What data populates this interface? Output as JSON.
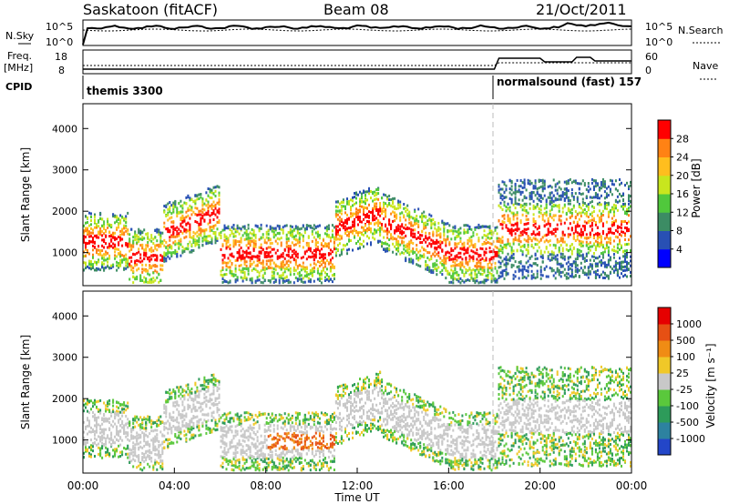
{
  "header": {
    "station": "Saskatoon (fitACF)",
    "beam": "Beam 08",
    "date": "21/Oct/2011"
  },
  "noise_panel": {
    "left_label": "N.Sky",
    "right_label": "N.Search",
    "left_ticks": [
      "10^5",
      "10^0"
    ],
    "right_ticks": [
      "10^5",
      "10^0"
    ]
  },
  "freq_panel": {
    "left_label_line1": "Freq.",
    "left_label_line2": "[MHz]",
    "right_label": "Nave",
    "left_ticks": [
      "18",
      "8"
    ],
    "right_ticks": [
      "60",
      "0"
    ]
  },
  "cpid": {
    "label": "CPID",
    "segments": [
      {
        "name": "themis 3300",
        "start": 0
      },
      {
        "name": "normalsound (fast) 157",
        "start": 18.1
      }
    ]
  },
  "chart_data": [
    {
      "type": "heatmap",
      "quantity": "power",
      "ylabel": "Slant Range [km]",
      "ylim": [
        200,
        4600
      ],
      "yticks": [
        "1000",
        "2000",
        "3000",
        "4000"
      ],
      "colorbar_label": "Power [dB]",
      "colorbar_ticks": [
        "28",
        "24",
        "20",
        "16",
        "12",
        "8",
        "4"
      ],
      "colorbar_colors": [
        "#0000ff",
        "#2850b4",
        "#3c8c64",
        "#50c83c",
        "#c8e61e",
        "#ffbe1e",
        "#ff8214",
        "#ff0000"
      ]
    },
    {
      "type": "heatmap",
      "quantity": "velocity",
      "ylabel": "Slant Range [km]",
      "ylim": [
        200,
        4600
      ],
      "yticks": [
        "1000",
        "2000",
        "3000",
        "4000"
      ],
      "colorbar_label": "Velocity [m s⁻¹]",
      "colorbar_ticks": [
        "1000",
        "500",
        "100",
        "25",
        "-25",
        "-100",
        "-500",
        "-1000"
      ],
      "colorbar_colors": [
        "#2346c8",
        "#2d82a0",
        "#2d9b5a",
        "#5ac83c",
        "#c8c8c8",
        "#f0c828",
        "#f08c14",
        "#e65014",
        "#e60000"
      ]
    }
  ],
  "time_axis": {
    "label": "Time UT",
    "xlim": [
      0,
      24
    ],
    "ticks": [
      "00:00",
      "04:00",
      "08:00",
      "12:00",
      "16:00",
      "20:00",
      "00:00"
    ]
  }
}
